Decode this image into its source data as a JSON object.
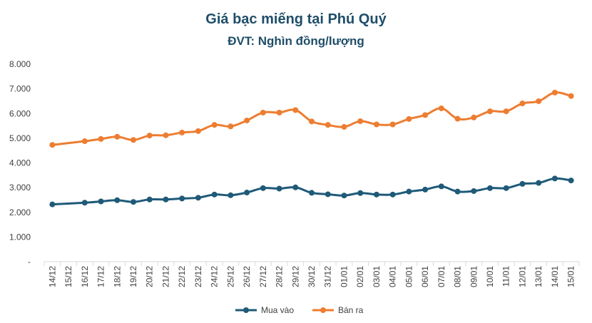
{
  "chart_data": {
    "type": "line",
    "title": "Giá bạc miếng tại Phú Quý",
    "subtitle": "ĐVT: Nghìn đồng/lượng",
    "xlabel": "",
    "ylabel": "",
    "ylim": [
      0,
      8000
    ],
    "y_ticks": [
      "-",
      "1.000",
      "2.000",
      "3.000",
      "4.000",
      "5.000",
      "6.000",
      "7.000",
      "8.000"
    ],
    "y_tick_values": [
      0,
      1000,
      2000,
      3000,
      4000,
      5000,
      6000,
      7000,
      8000
    ],
    "grid": false,
    "legend_position": "bottom",
    "categories": [
      "14/12",
      "15/12",
      "16/12",
      "17/12",
      "18/12",
      "19/12",
      "20/12",
      "21/12",
      "22/12",
      "23/12",
      "24/12",
      "25/12",
      "26/12",
      "27/12",
      "28/12",
      "29/12",
      "30/12",
      "31/12",
      "01/01",
      "02/01",
      "03/01",
      "04/01",
      "05/01",
      "06/01",
      "07/01",
      "08/01",
      "09/01",
      "10/01",
      "11/01",
      "12/01",
      "13/01",
      "14/01",
      "15/01"
    ],
    "series": [
      {
        "name": "Mua vào",
        "color": "#1f5a78",
        "values": [
          2320,
          null,
          2390,
          2440,
          2490,
          2420,
          2520,
          2520,
          2560,
          2590,
          2720,
          2690,
          2800,
          2980,
          2960,
          3010,
          2790,
          2730,
          2680,
          2780,
          2720,
          2720,
          2840,
          2920,
          3050,
          2840,
          2860,
          2980,
          2980,
          3150,
          3190,
          3370,
          3290
        ]
      },
      {
        "name": "Bán ra",
        "color": "#ed7d31",
        "values": [
          4730,
          null,
          4880,
          4970,
          5060,
          4930,
          5110,
          5120,
          5230,
          5290,
          5540,
          5480,
          5720,
          6040,
          6040,
          6140,
          5680,
          5540,
          5460,
          5690,
          5560,
          5560,
          5780,
          5940,
          6210,
          5790,
          5840,
          6090,
          6090,
          6410,
          6500,
          6850,
          6710
        ]
      }
    ]
  }
}
